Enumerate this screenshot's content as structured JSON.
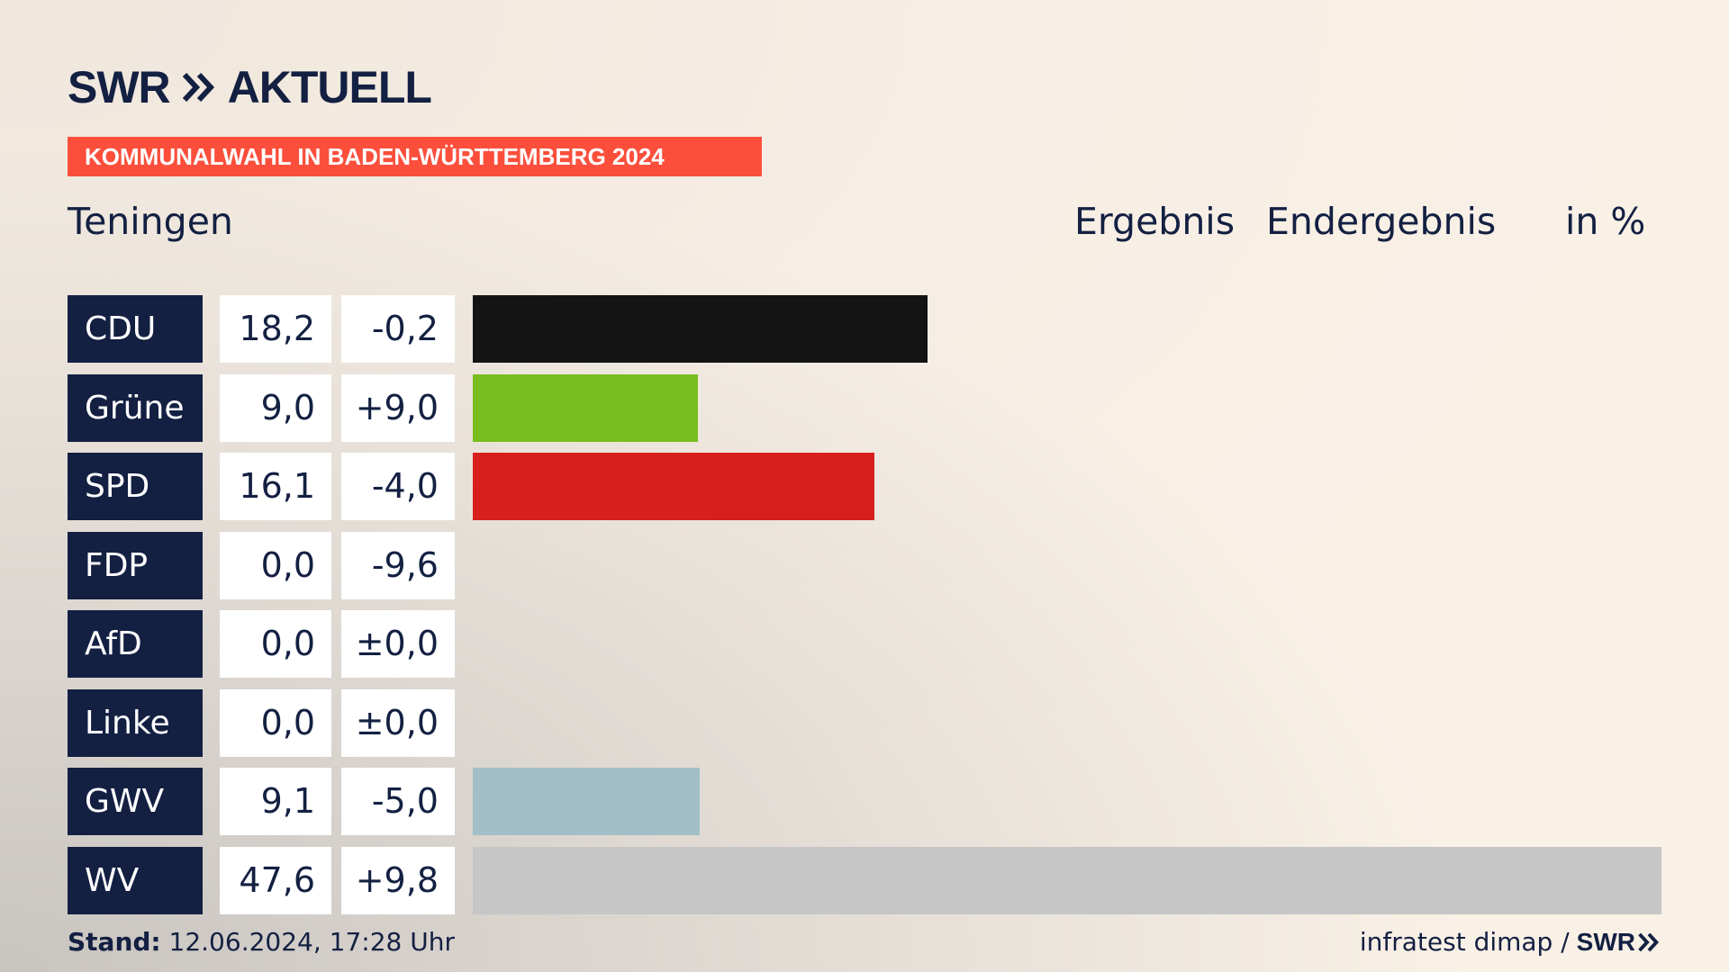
{
  "header": {
    "logo_text": "SWR",
    "logo_suffix": "AKTUELL",
    "logo_icon": "double-chevron-icon",
    "tag": "KOMMUNALWAHL IN BADEN-WÜRTTEMBERG 2024",
    "location": "Teningen",
    "col_result": "Ergebnis",
    "col_final": "Endergebnis",
    "col_unit": "in %"
  },
  "colors": {
    "navy": "#132042",
    "tag_red": "#fb4f3c"
  },
  "chart_data": {
    "type": "bar",
    "orientation": "horizontal",
    "title": "",
    "xlabel": "",
    "ylabel": "",
    "xlim": [
      0,
      47.6
    ],
    "categories": [
      "CDU",
      "Grüne",
      "SPD",
      "FDP",
      "AfD",
      "Linke",
      "GWV",
      "WV"
    ],
    "values": [
      18.2,
      9.0,
      16.1,
      0.0,
      0.0,
      0.0,
      9.1,
      47.6
    ],
    "value_labels": [
      "18,2",
      "9,0",
      "16,1",
      "0,0",
      "0,0",
      "0,0",
      "9,1",
      "47,6"
    ],
    "diff_labels": [
      "-0,2",
      "+9,0",
      "-4,0",
      "-9,6",
      "±0,0",
      "±0,0",
      "-5,0",
      "+9,8"
    ],
    "colors": [
      "#141414",
      "#78be1e",
      "#d7201e",
      "#ffe000",
      "#009ee0",
      "#be3075",
      "#a2bfc8",
      "#c6c6c6"
    ]
  },
  "footer": {
    "stand_label": "Stand:",
    "stand_value": "12.06.2024, 17:28 Uhr",
    "source": "infratest dimap /",
    "source_logo": "SWR"
  }
}
